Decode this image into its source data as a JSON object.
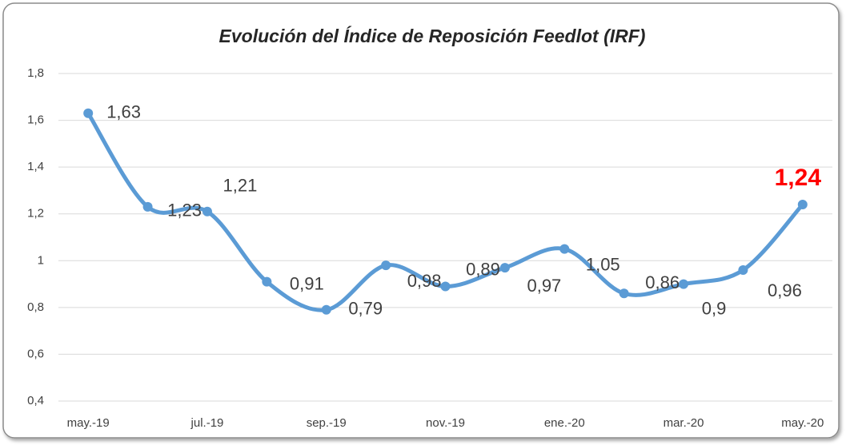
{
  "chart_data": {
    "type": "line",
    "title": "Evolución del Índice de Reposición Feedlot (IRF)",
    "categories": [
      "may.-19",
      null,
      "jul.-19",
      null,
      "sep.-19",
      null,
      "nov.-19",
      null,
      "ene.-20",
      null,
      "mar.-20",
      null,
      "may.-20"
    ],
    "values": [
      1.63,
      1.23,
      1.21,
      0.91,
      0.79,
      0.98,
      0.89,
      0.97,
      1.05,
      0.86,
      0.9,
      0.96,
      1.24
    ],
    "value_labels": [
      "1,63",
      "1,23",
      "1,21",
      "0,91",
      "0,79",
      "0,98",
      "0,89",
      "0,97",
      "1,05",
      "0,86",
      "0,9",
      "0,96",
      "1,24"
    ],
    "color": "#5b9bd5",
    "ylim": [
      0.4,
      1.8
    ],
    "yticks": [
      {
        "value": 0.4,
        "label": "0,4"
      },
      {
        "value": 0.6,
        "label": "0,6"
      },
      {
        "value": 0.8,
        "label": "0,8"
      },
      1,
      {
        "value": 1.2,
        "label": "1,2"
      },
      {
        "value": 1.4,
        "label": "1,4"
      },
      {
        "value": 1.6,
        "label": "1,6"
      },
      {
        "value": 1.8,
        "label": "1,8"
      }
    ],
    "grid": true
  }
}
